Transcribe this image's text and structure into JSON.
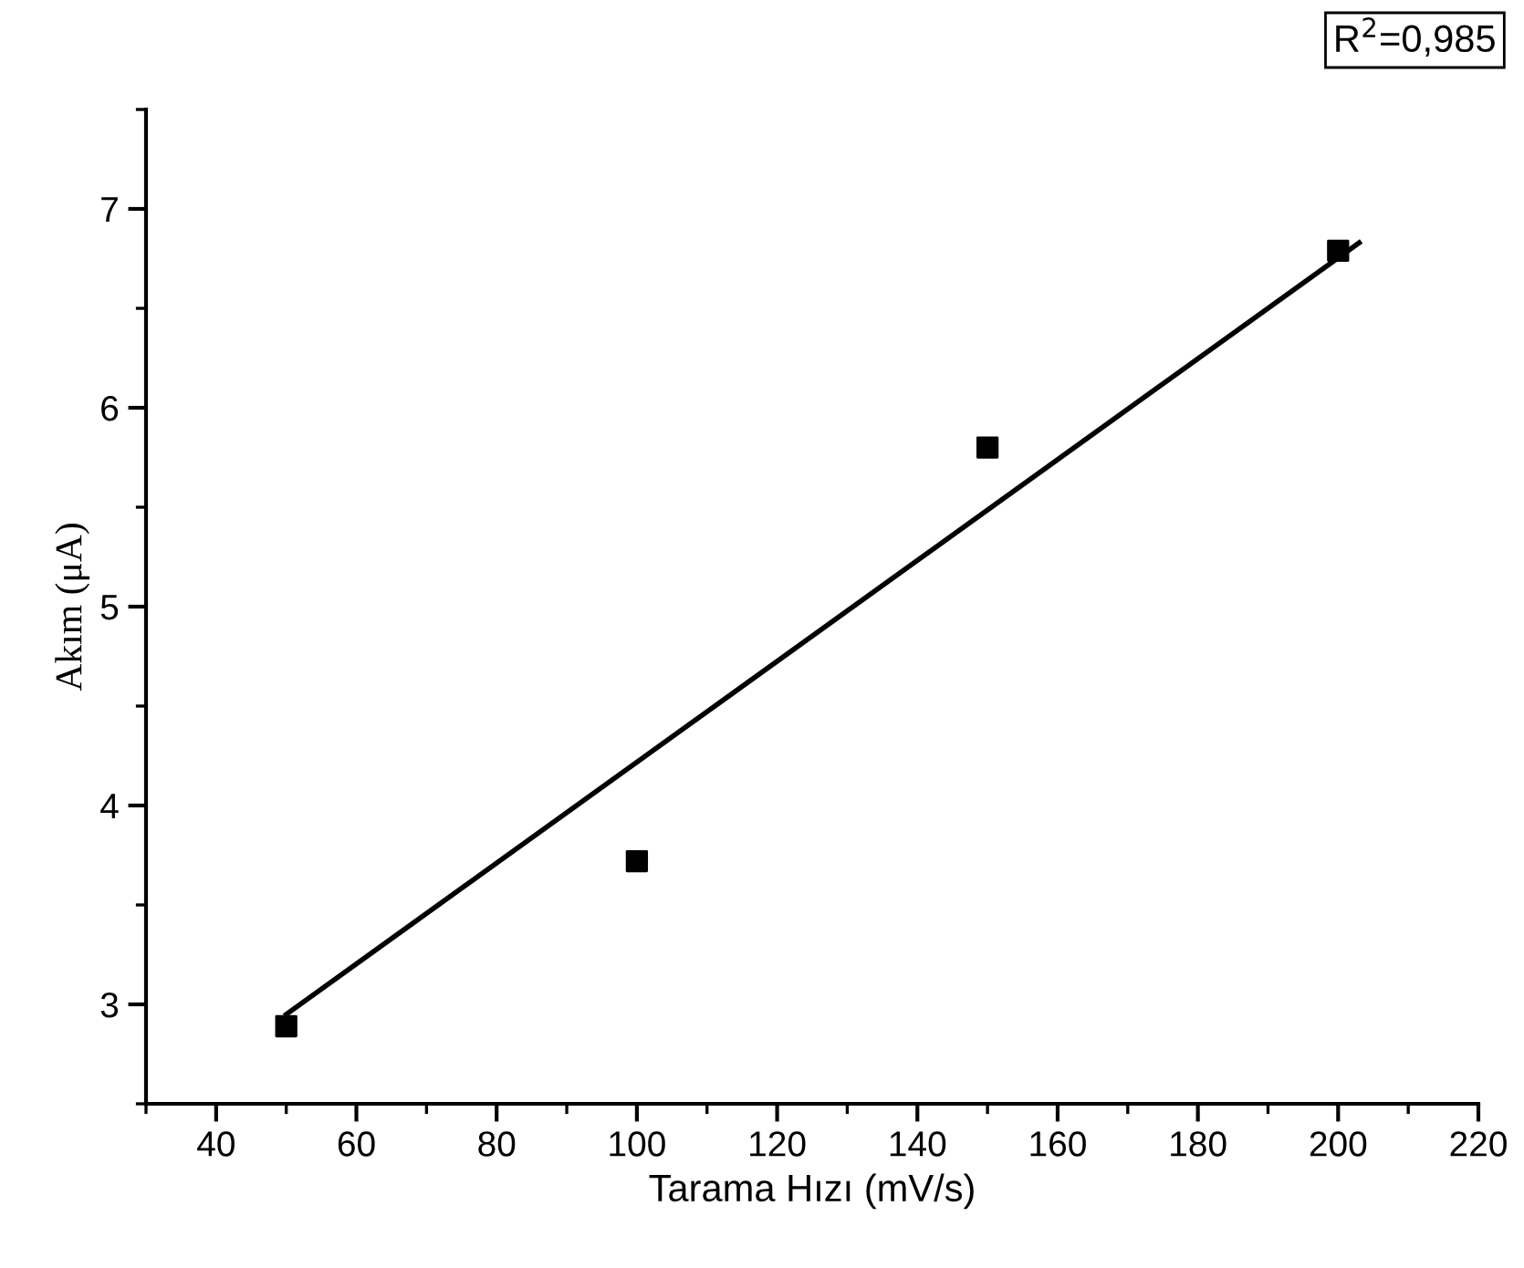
{
  "chart_data": {
    "type": "scatter",
    "xlabel": "Tarama Hızı (mV/s)",
    "ylabel": "Akım (μA)",
    "annotations": [
      "R$^{2}$=0,985"
    ],
    "xlim": [
      30,
      220
    ],
    "xticks": [
      40,
      60,
      80,
      100,
      120,
      140,
      160,
      180,
      200,
      220
    ],
    "ylim": [
      2.5,
      7.5
    ],
    "yticks": [
      3,
      4,
      5,
      6,
      7
    ],
    "grid": false,
    "legend": false,
    "series": [
      {
        "color": "#000000",
        "marker": "square",
        "x": [
          50,
          100,
          150,
          200
        ],
        "values": [
          2.89,
          3.72,
          5.8,
          6.79
        ]
      },
      {
        "type": "line",
        "marker": "none",
        "color": "#000000",
        "x": [
          50,
          203
        ],
        "values": [
          2.95,
          6.83
        ]
      }
    ]
  }
}
